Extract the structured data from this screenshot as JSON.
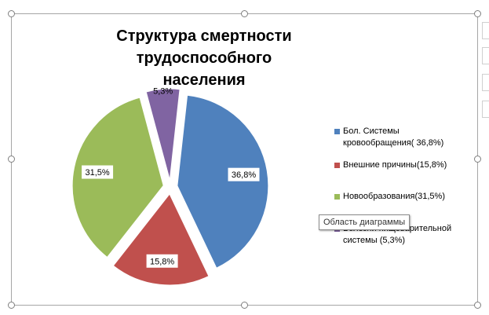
{
  "chart_data": {
    "type": "pie",
    "title": "Структура смертности трудоспособного населения",
    "title_lines": [
      "Структура смертности трудоспособного",
      "населения"
    ],
    "slices": [
      {
        "legend": "Бол. Системы кровообращения( 36,8%)",
        "legend_lines": [
          "Бол. Системы",
          "кровообращения( 36,8%)"
        ],
        "value": 36.8,
        "label": "36,8%",
        "color": "#4f81bd"
      },
      {
        "legend": "Внешние причины(15,8%)",
        "legend_lines": [
          "Внешние причины(15,8%)"
        ],
        "value": 15.8,
        "label": "15,8%",
        "color": "#c0504d"
      },
      {
        "legend": "Новообразования(31,5%)",
        "legend_lines": [
          "Новообразования(31,5%)"
        ],
        "value": 31.5,
        "label": "31,5%",
        "color": "#9bbb59"
      },
      {
        "legend": "Болезни пищеварительной системы (5,3%)",
        "legend_lines": [
          "Болезни пищеварительной",
          "системы (5,3%)"
        ],
        "value": 5.3,
        "label": "5,3%",
        "color": "#8064a2"
      }
    ],
    "exploded": true,
    "legend_position": "right"
  },
  "tooltip": "Область диаграммы"
}
